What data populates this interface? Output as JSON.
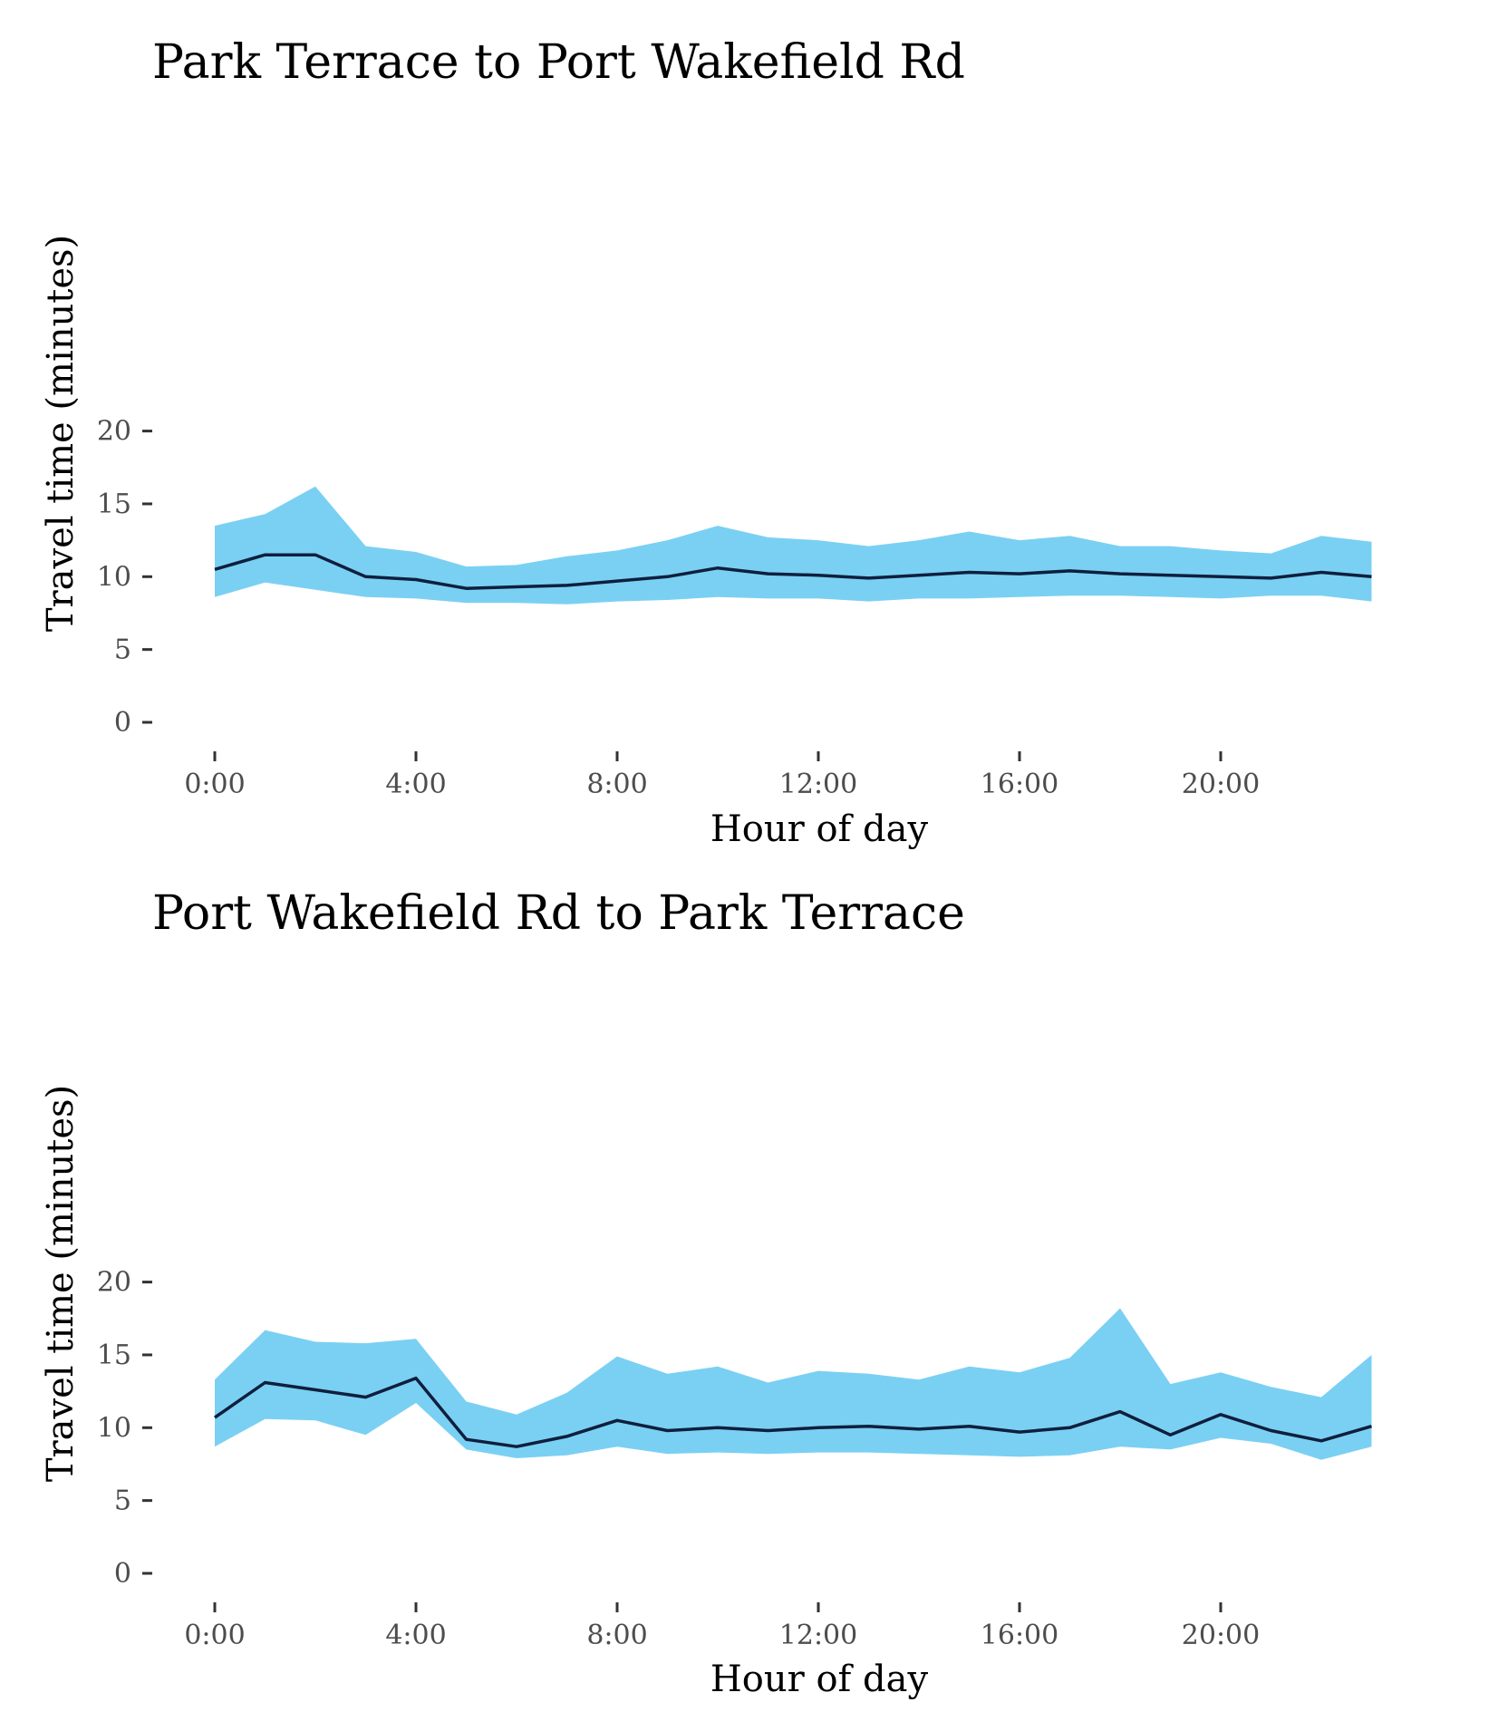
{
  "colors": {
    "band_fill": "#7ad0f3",
    "median_line": "#0f1f3d",
    "tick": "#333333",
    "tick_label": "#4d4d4d",
    "text": "#000000",
    "background": "#ffffff"
  },
  "chart_data": [
    {
      "type": "area",
      "title": "Park Terrace to Port Wakefield Rd",
      "xlabel": "Hour of day",
      "ylabel": "Travel time (minutes)",
      "xlim": [
        -0.5,
        23.5
      ],
      "ylim": [
        0,
        20
      ],
      "grid": false,
      "x_ticks": [
        0,
        4,
        8,
        12,
        16,
        20
      ],
      "x_tick_labels": [
        "0:00",
        "4:00",
        "8:00",
        "12:00",
        "16:00",
        "20:00"
      ],
      "y_ticks": [
        0,
        5,
        10,
        15,
        20
      ],
      "y_tick_labels": [
        "0",
        "5",
        "10",
        "15",
        "20"
      ],
      "x": [
        0,
        1,
        2,
        3,
        4,
        5,
        6,
        7,
        8,
        9,
        10,
        11,
        12,
        13,
        14,
        15,
        16,
        17,
        18,
        19,
        20,
        21,
        22,
        23
      ],
      "series": [
        {
          "role": "upper",
          "values": [
            13.5,
            14.3,
            16.2,
            12.1,
            11.7,
            10.7,
            10.8,
            11.4,
            11.8,
            12.5,
            13.5,
            12.7,
            12.5,
            12.1,
            12.5,
            13.1,
            12.5,
            12.8,
            12.1,
            12.1,
            11.8,
            11.6,
            12.8,
            12.4
          ]
        },
        {
          "role": "median",
          "values": [
            10.5,
            11.5,
            11.5,
            10.0,
            9.8,
            9.2,
            9.3,
            9.4,
            9.7,
            10.0,
            10.6,
            10.2,
            10.1,
            9.9,
            10.1,
            10.3,
            10.2,
            10.4,
            10.2,
            10.1,
            10.0,
            9.9,
            10.3,
            10.0
          ]
        },
        {
          "role": "lower",
          "values": [
            8.6,
            9.6,
            9.1,
            8.6,
            8.5,
            8.2,
            8.2,
            8.1,
            8.3,
            8.4,
            8.6,
            8.5,
            8.5,
            8.3,
            8.5,
            8.5,
            8.6,
            8.7,
            8.7,
            8.6,
            8.5,
            8.7,
            8.7,
            8.3
          ]
        }
      ]
    },
    {
      "type": "area",
      "title": "Port Wakefield Rd to Park Terrace",
      "xlabel": "Hour of day",
      "ylabel": "Travel time (minutes)",
      "xlim": [
        -0.5,
        23.5
      ],
      "ylim": [
        0,
        20
      ],
      "grid": false,
      "x_ticks": [
        0,
        4,
        8,
        12,
        16,
        20
      ],
      "x_tick_labels": [
        "0:00",
        "4:00",
        "8:00",
        "12:00",
        "16:00",
        "20:00"
      ],
      "y_ticks": [
        0,
        5,
        10,
        15,
        20
      ],
      "y_tick_labels": [
        "0",
        "5",
        "10",
        "15",
        "20"
      ],
      "x": [
        0,
        1,
        2,
        3,
        4,
        5,
        6,
        7,
        8,
        9,
        10,
        11,
        12,
        13,
        14,
        15,
        16,
        17,
        18,
        19,
        20,
        21,
        22,
        23
      ],
      "series": [
        {
          "role": "upper",
          "values": [
            13.3,
            16.7,
            15.9,
            15.8,
            16.1,
            11.8,
            10.9,
            12.4,
            14.9,
            13.7,
            14.2,
            13.1,
            13.9,
            13.7,
            13.3,
            14.2,
            13.8,
            14.8,
            18.2,
            13.0,
            13.8,
            12.8,
            12.1,
            15.0
          ]
        },
        {
          "role": "median",
          "values": [
            10.7,
            13.1,
            12.6,
            12.1,
            13.4,
            9.2,
            8.7,
            9.4,
            10.5,
            9.8,
            10.0,
            9.8,
            10.0,
            10.1,
            9.9,
            10.1,
            9.7,
            10.0,
            11.1,
            9.5,
            10.9,
            9.8,
            9.1,
            10.1
          ]
        },
        {
          "role": "lower",
          "values": [
            8.7,
            10.6,
            10.5,
            9.5,
            11.7,
            8.5,
            7.9,
            8.1,
            8.7,
            8.2,
            8.3,
            8.2,
            8.3,
            8.3,
            8.2,
            8.1,
            8.0,
            8.1,
            8.7,
            8.5,
            9.3,
            8.9,
            7.8,
            8.7
          ]
        }
      ]
    }
  ]
}
